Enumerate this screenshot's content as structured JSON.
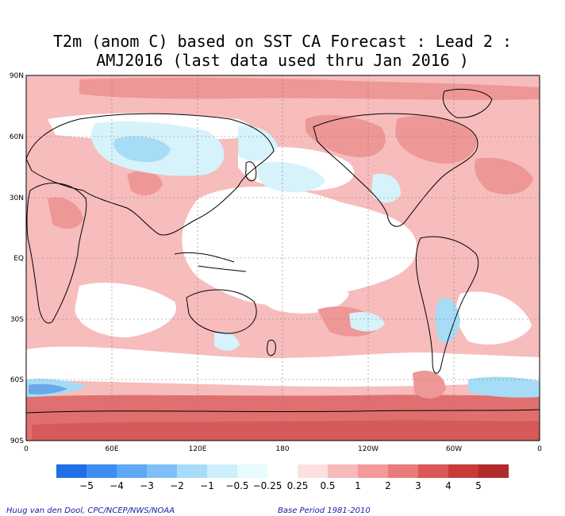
{
  "title_line1": "T2m (anom C) based on SST CA Forecast : Lead 2 :",
  "title_line2": "AMJ2016 (last data used thru Jan 2016 )",
  "lat_labels": [
    "90N",
    "60N",
    "30N",
    "EQ",
    "30S",
    "60S",
    "90S"
  ],
  "lon_labels": [
    "0",
    "60E",
    "120E",
    "180",
    "120W",
    "60W",
    "0"
  ],
  "colorbar": {
    "labels": [
      "-5",
      "-4",
      "-3",
      "-2",
      "-1",
      "-0.5",
      "-0.25",
      "0.25",
      "0.5",
      "1",
      "2",
      "3",
      "4",
      "5"
    ],
    "colors": [
      "#1f6fe6",
      "#3f8df0",
      "#5ea8f5",
      "#80c0f8",
      "#a6dcf8",
      "#cdeefb",
      "#e8fbfd",
      "#ffffff",
      "#fde0e0",
      "#f8b9b9",
      "#f29999",
      "#e97a7a",
      "#dc5757",
      "#c93b3b",
      "#b02a2a"
    ]
  },
  "footer_left": "Huug van den Dool, CPC/NCEP/NWS/NOAA",
  "footer_right": "Base Period 1981-2010",
  "colors": {
    "warm_base": "#f6b5b5",
    "warm_mid": "#ee9797",
    "warm_strong": "#d95656",
    "cool_light": "#d6f2fb",
    "cool_mid": "#a6dcf5",
    "cool_strong": "#6aa8ea",
    "land_outline": "#000000"
  }
}
